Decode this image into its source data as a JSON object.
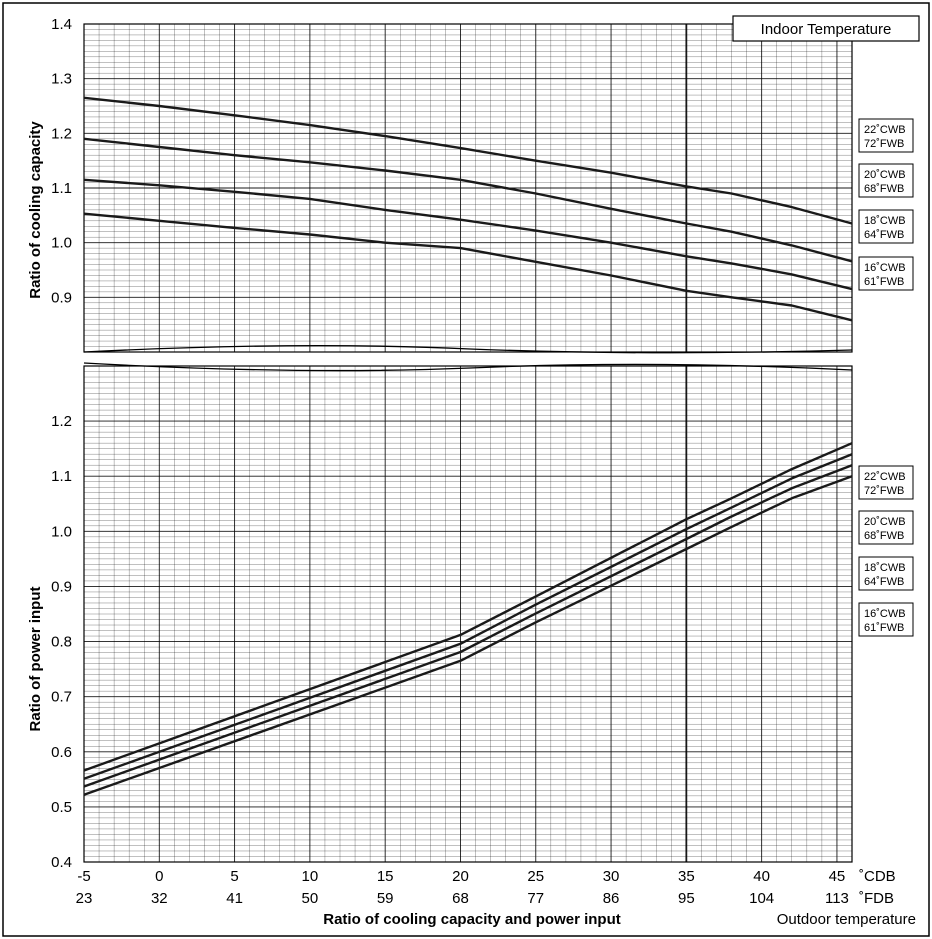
{
  "chart_data": [
    {
      "type": "line",
      "ylabel": "Ratio of cooling capacity",
      "ylim": [
        0.8,
        1.4
      ],
      "yticks": [
        "0.9",
        "1.0",
        "1.1",
        "1.2",
        "1.3",
        "1.4"
      ],
      "xlim": [
        -5,
        46
      ],
      "legend_title": "Indoor Temperature",
      "series": [
        {
          "name": "22˚CWB 72˚FWB",
          "label_top": "22˚CWB",
          "label_bottom": "72˚FWB",
          "x": [
            -5,
            0,
            5,
            10,
            15,
            20,
            25,
            30,
            35,
            38,
            42,
            46
          ],
          "values": [
            1.265,
            1.25,
            1.233,
            1.215,
            1.195,
            1.173,
            1.15,
            1.128,
            1.103,
            1.09,
            1.065,
            1.035
          ]
        },
        {
          "name": "20˚CWB 68˚FWB",
          "label_top": "20˚CWB",
          "label_bottom": "68˚FWB",
          "x": [
            -5,
            0,
            5,
            10,
            15,
            20,
            25,
            30,
            35,
            38,
            42,
            46
          ],
          "values": [
            1.19,
            1.175,
            1.16,
            1.147,
            1.132,
            1.115,
            1.09,
            1.062,
            1.035,
            1.02,
            0.995,
            0.966
          ]
        },
        {
          "name": "18˚CWB 64˚FWB",
          "label_top": "18˚CWB",
          "label_bottom": "64˚FWB",
          "x": [
            -5,
            0,
            5,
            10,
            15,
            20,
            25,
            30,
            35,
            38,
            42,
            46
          ],
          "values": [
            1.115,
            1.105,
            1.093,
            1.08,
            1.06,
            1.042,
            1.022,
            1.0,
            0.975,
            0.962,
            0.942,
            0.915
          ]
        },
        {
          "name": "16˚CWB 61˚FWB",
          "label_top": "16˚CWB",
          "label_bottom": "61˚FWB",
          "x": [
            -5,
            0,
            5,
            10,
            15,
            20,
            25,
            30,
            35,
            38,
            42,
            46
          ],
          "values": [
            1.053,
            1.04,
            1.027,
            1.015,
            1.0,
            0.99,
            0.965,
            0.94,
            0.912,
            0.9,
            0.885,
            0.858
          ]
        }
      ]
    },
    {
      "type": "line",
      "ylabel": "Ratio of power input",
      "xlabel": "Ratio of cooling capacity and power input",
      "ylim": [
        0.4,
        1.2
      ],
      "yticks": [
        "0.4",
        "0.5",
        "0.6",
        "0.7",
        "0.8",
        "0.9",
        "1.0",
        "1.1",
        "1.2"
      ],
      "xlim": [
        -5,
        46
      ],
      "x_ticks_cdb": [
        "-5",
        "0",
        "5",
        "10",
        "15",
        "20",
        "25",
        "30",
        "35",
        "40",
        "45"
      ],
      "x_ticks_fdb": [
        "23",
        "32",
        "41",
        "50",
        "59",
        "68",
        "77",
        "86",
        "95",
        "104",
        "113"
      ],
      "x_unit_cdb": "˚CDB",
      "x_unit_fdb": "˚FDB",
      "x_note": "Outdoor temperature",
      "series": [
        {
          "name": "22˚CWB 72˚FWB",
          "label_top": "22˚CWB",
          "label_bottom": "72˚FWB",
          "x": [
            -5,
            20,
            25,
            35,
            38,
            42,
            46
          ],
          "values": [
            0.566,
            0.812,
            0.882,
            1.022,
            1.06,
            1.113,
            1.16
          ]
        },
        {
          "name": "20˚CWB 68˚FWB",
          "label_top": "20˚CWB",
          "label_bottom": "68˚FWB",
          "x": [
            -5,
            20,
            25,
            35,
            38,
            42,
            46
          ],
          "values": [
            0.551,
            0.796,
            0.867,
            1.004,
            1.043,
            1.096,
            1.14
          ]
        },
        {
          "name": "18˚CWB 64˚FWB",
          "label_top": "18˚CWB",
          "label_bottom": "64˚FWB",
          "x": [
            -5,
            20,
            25,
            35,
            38,
            42,
            46
          ],
          "values": [
            0.537,
            0.781,
            0.851,
            0.986,
            1.027,
            1.078,
            1.12
          ]
        },
        {
          "name": "16˚CWB 61˚FWB",
          "label_top": "16˚CWB",
          "label_bottom": "61˚FWB",
          "x": [
            -5,
            20,
            25,
            35,
            38,
            42,
            46
          ],
          "values": [
            0.522,
            0.765,
            0.835,
            0.968,
            1.008,
            1.06,
            1.1
          ]
        }
      ]
    }
  ],
  "colors": {
    "line": "#1a1a1a",
    "grid": "#000000",
    "background": "#ffffff"
  }
}
